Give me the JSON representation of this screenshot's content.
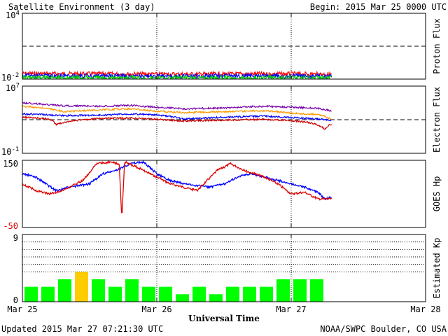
{
  "header": {
    "title": "Satellite Environment (3 day)",
    "begin": "Begin:  2015 Mar 25 0000 UTC"
  },
  "footer": {
    "updated": "Updated 2015 Mar 27 07:21:30 UTC",
    "credit": "NOAA/SWPC Boulder, CO USA"
  },
  "xaxis": {
    "label": "Universal Time",
    "ticks": [
      "Mar 25",
      "Mar 26",
      "Mar 27",
      "Mar 28"
    ]
  },
  "chart_data": [
    {
      "type": "line",
      "name": "proton-flux",
      "ylabel": "Proton Flux",
      "yscale": "log",
      "ylim": [
        0.01,
        10000
      ],
      "tick_labels": {
        "top_base": "10",
        "top_exp": "4",
        "bottom_base": "10",
        "bottom_exp": "-2"
      },
      "x_unit": "days since Mar 25 0000 UTC",
      "dashed_threshold": 10,
      "series": [
        {
          "color": "#ff0000",
          "x": [
            0,
            0.5,
            1.0,
            1.5,
            2.0,
            2.3
          ],
          "y": [
            0.032,
            0.03,
            0.028,
            0.029,
            0.03,
            0.028
          ]
        },
        {
          "color": "#0000ff",
          "x": [
            0,
            0.5,
            1.0,
            1.5,
            2.0,
            2.3
          ],
          "y": [
            0.021,
            0.02,
            0.019,
            0.02,
            0.019,
            0.019
          ]
        },
        {
          "color": "#00cc00",
          "x": [
            0,
            0.5,
            1.0,
            1.5,
            2.0,
            2.3
          ],
          "y": [
            0.014,
            0.014,
            0.013,
            0.014,
            0.013,
            0.013
          ]
        }
      ]
    },
    {
      "type": "line",
      "name": "electron-flux",
      "ylabel": "Electron Flux",
      "yscale": "log",
      "ylim": [
        0.1,
        10000000
      ],
      "tick_labels": {
        "top_base": "10",
        "top_exp": "7",
        "bottom_base": "10",
        "bottom_exp": "-1"
      },
      "x_unit": "days since Mar 25 0000 UTC",
      "dashed_threshold": 1000,
      "series": [
        {
          "color": "#7700aa",
          "x": [
            0,
            0.3,
            0.6,
            0.8,
            1.0,
            1.2,
            1.5,
            1.8,
            2.0,
            2.2,
            2.3
          ],
          "y": [
            100000,
            45000,
            40000,
            50000,
            30000,
            20000,
            25000,
            40000,
            30000,
            22000,
            10000
          ]
        },
        {
          "color": "#ff9900",
          "x": [
            0,
            0.3,
            0.6,
            0.8,
            1.0,
            1.2,
            1.5,
            1.8,
            2.0,
            2.2,
            2.3
          ],
          "y": [
            40000,
            9000,
            15000,
            20000,
            10000,
            7000,
            9000,
            12000,
            6000,
            4000,
            1000
          ]
        },
        {
          "color": "#0000ff",
          "x": [
            0,
            0.3,
            0.6,
            0.8,
            1.0,
            1.2,
            1.5,
            1.8,
            2.0,
            2.2,
            2.3
          ],
          "y": [
            5000,
            3000,
            3500,
            5000,
            3500,
            1200,
            2000,
            2600,
            1800,
            1200,
            800
          ]
        },
        {
          "color": "#cc0000",
          "x": [
            0,
            0.2,
            0.25,
            0.6,
            0.8,
            1.0,
            1.2,
            1.5,
            1.8,
            2.0,
            2.15,
            2.25,
            2.3
          ],
          "y": [
            2000,
            1200,
            250,
            1500,
            1500,
            1100,
            700,
            900,
            1100,
            800,
            400,
            60,
            300
          ]
        }
      ]
    },
    {
      "type": "line",
      "name": "goes-hp",
      "ylabel": "GOES Hp",
      "ylim": [
        -50,
        150
      ],
      "tick_labels": {
        "top": "150",
        "bottom": "-50"
      },
      "x_unit": "days since Mar 25 0000 UTC",
      "series": [
        {
          "color": "#0000ff",
          "x": [
            0,
            0.1,
            0.25,
            0.35,
            0.5,
            0.6,
            0.7,
            0.8,
            0.9,
            1.0,
            1.1,
            1.2,
            1.4,
            1.5,
            1.6,
            1.7,
            1.8,
            1.9,
            2.0,
            2.1,
            2.2,
            2.25,
            2.3
          ],
          "y": [
            110,
            100,
            60,
            70,
            80,
            110,
            120,
            140,
            145,
            110,
            90,
            80,
            70,
            80,
            100,
            110,
            100,
            90,
            80,
            70,
            55,
            35,
            40
          ]
        },
        {
          "color": "#dd0000",
          "x": [
            0,
            0.1,
            0.2,
            0.3,
            0.45,
            0.55,
            0.65,
            0.72,
            0.74,
            0.76,
            0.8,
            0.9,
            1.0,
            1.1,
            1.2,
            1.3,
            1.45,
            1.55,
            1.65,
            1.8,
            1.9,
            2.0,
            2.1,
            2.2,
            2.3
          ],
          "y": [
            80,
            60,
            50,
            60,
            90,
            140,
            145,
            140,
            -25,
            145,
            140,
            120,
            100,
            80,
            70,
            60,
            120,
            140,
            120,
            100,
            80,
            50,
            55,
            35,
            35
          ]
        }
      ]
    },
    {
      "type": "bar",
      "name": "estimated-kp",
      "ylabel": "Estimated Kp",
      "ylim": [
        0,
        9
      ],
      "tick_labels": {
        "top": "9",
        "bottom": "0"
      },
      "x_unit": "3-hour intervals from Mar 25 0000 UTC",
      "values": [
        2,
        2,
        3,
        4,
        3,
        2,
        3,
        2,
        2,
        1,
        2,
        1,
        2,
        2,
        2,
        3,
        3,
        3
      ],
      "colors": [
        "#00ff00",
        "#00ff00",
        "#00ff00",
        "#ffcc00",
        "#00ff00",
        "#00ff00",
        "#00ff00",
        "#00ff00",
        "#00ff00",
        "#00ff00",
        "#00ff00",
        "#00ff00",
        "#00ff00",
        "#00ff00",
        "#00ff00",
        "#00ff00",
        "#00ff00",
        "#00ff00"
      ]
    }
  ]
}
